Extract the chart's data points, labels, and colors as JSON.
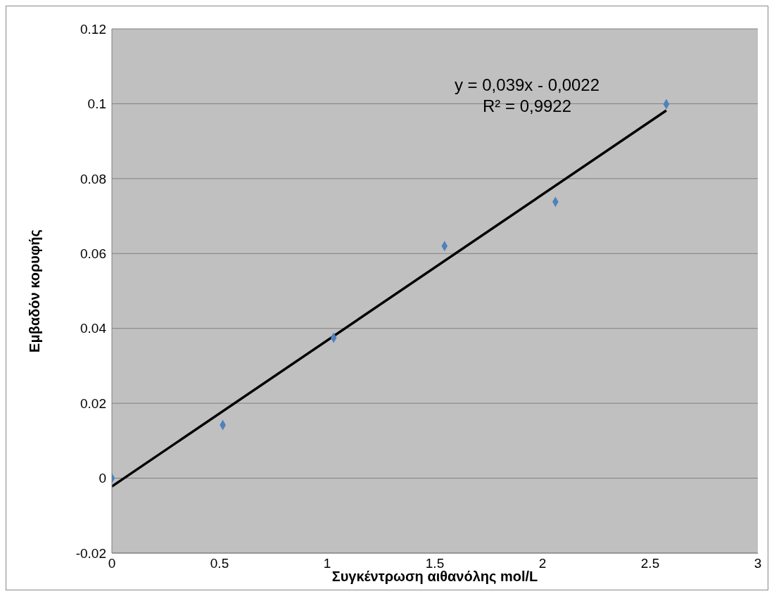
{
  "chart_data": {
    "type": "scatter",
    "xlabel": "Συγκέντρωση αιθανόλης mol/L",
    "ylabel": "Εμβαδόν κορυφής",
    "xlim": [
      0,
      3
    ],
    "xticks": [
      0,
      0.5,
      1,
      1.5,
      2,
      2.5,
      3
    ],
    "ylim": [
      -0.02,
      0.12
    ],
    "yticks": [
      -0.02,
      0,
      0.02,
      0.04,
      0.06,
      0.08,
      0.1,
      0.12
    ],
    "grid": "y",
    "marker": "diamond",
    "legend": false,
    "series": [
      {
        "color": "#4f81bd",
        "x": [
          0,
          0.515,
          1.03,
          1.545,
          2.06,
          2.575
        ],
        "values": [
          0,
          0.0142,
          0.0375,
          0.062,
          0.0738,
          0.0999
        ]
      },
      {
        "type": "line",
        "color": "#000000",
        "marker": "none",
        "x": [
          0,
          2.575
        ],
        "values": [
          -0.0022,
          0.0982
        ]
      }
    ],
    "annotations": [
      "y = 0,039x - 0,0022",
      "R² = 0,9922"
    ]
  }
}
